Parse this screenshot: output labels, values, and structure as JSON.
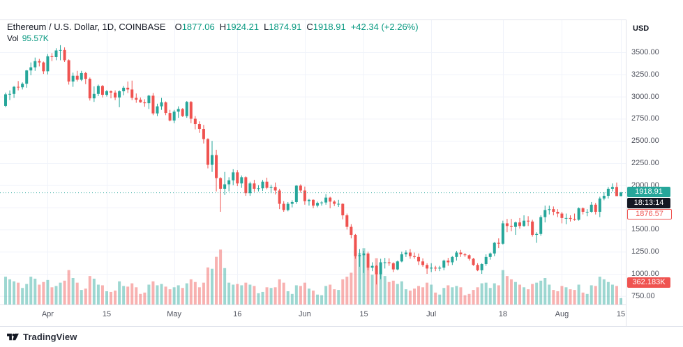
{
  "header": {
    "symbol_title": "Ethereum / U.S. Dollar, 1D, COINBASE",
    "ohlc": {
      "o_label": "O",
      "o": "1877.06",
      "h_label": "H",
      "h": "1924.21",
      "l_label": "L",
      "l": "1874.91",
      "c_label": "C",
      "c": "1918.91",
      "change": "+42.34 (+2.26%)"
    },
    "volume_label": "Vol",
    "volume_value": "95.57K"
  },
  "price_axis": {
    "unit": "USD",
    "last_price_badge": "1918.91",
    "countdown_badge": "18:13:14",
    "prev_close_badge": "1876.57",
    "volume_badge": "362.183K"
  },
  "footer": {
    "brand": "TradingView"
  },
  "chart_data": {
    "type": "candlestick+volume",
    "title": "Ethereum / U.S. Dollar, 1D, COINBASE",
    "symbol": "ETH/USD",
    "exchange": "COINBASE",
    "interval": "1D",
    "start_date": "2022-03-22",
    "last_price": 1918.91,
    "prev_close": 1876.57,
    "columns": [
      "open",
      "high",
      "low",
      "close",
      "volume_k"
    ],
    "candles": [
      [
        2895,
        3045,
        2880,
        3025,
        420
      ],
      [
        3025,
        3070,
        2960,
        3030,
        380
      ],
      [
        3030,
        3120,
        2985,
        3110,
        350
      ],
      [
        3110,
        3175,
        3070,
        3105,
        330
      ],
      [
        3105,
        3160,
        3080,
        3145,
        250
      ],
      [
        3145,
        3300,
        3100,
        3295,
        310
      ],
      [
        3295,
        3385,
        3240,
        3330,
        420
      ],
      [
        3330,
        3440,
        3290,
        3400,
        390
      ],
      [
        3400,
        3425,
        3340,
        3385,
        300
      ],
      [
        3385,
        3395,
        3255,
        3285,
        340
      ],
      [
        3285,
        3480,
        3250,
        3455,
        370
      ],
      [
        3455,
        3490,
        3400,
        3445,
        260
      ],
      [
        3445,
        3545,
        3410,
        3520,
        280
      ],
      [
        3520,
        3580,
        3410,
        3525,
        330
      ],
      [
        3525,
        3555,
        3390,
        3410,
        360
      ],
      [
        3410,
        3420,
        3135,
        3170,
        520
      ],
      [
        3170,
        3270,
        3110,
        3235,
        400
      ],
      [
        3235,
        3290,
        3170,
        3190,
        330
      ],
      [
        3190,
        3290,
        3175,
        3265,
        220
      ],
      [
        3265,
        3280,
        3140,
        3200,
        240
      ],
      [
        3200,
        3215,
        2955,
        2980,
        430
      ],
      [
        2980,
        3115,
        2940,
        3030,
        390
      ],
      [
        3030,
        3135,
        3005,
        3120,
        300
      ],
      [
        3120,
        3130,
        2990,
        3020,
        290
      ],
      [
        3020,
        3075,
        3000,
        3060,
        200
      ],
      [
        3060,
        3070,
        2980,
        3045,
        190
      ],
      [
        3045,
        3070,
        2960,
        2990,
        210
      ],
      [
        2990,
        3070,
        2880,
        3060,
        350
      ],
      [
        3060,
        3120,
        3015,
        3100,
        280
      ],
      [
        3100,
        3170,
        3040,
        3080,
        270
      ],
      [
        3080,
        3180,
        2960,
        2985,
        320
      ],
      [
        2985,
        3035,
        2930,
        2965,
        260
      ],
      [
        2965,
        2990,
        2930,
        2935,
        160
      ],
      [
        2935,
        2970,
        2885,
        2925,
        180
      ],
      [
        2925,
        3020,
        2860,
        3010,
        300
      ],
      [
        3010,
        3040,
        2790,
        2810,
        350
      ],
      [
        2810,
        2920,
        2780,
        2890,
        290
      ],
      [
        2890,
        2985,
        2850,
        2935,
        310
      ],
      [
        2935,
        2945,
        2790,
        2815,
        270
      ],
      [
        2815,
        2850,
        2720,
        2730,
        230
      ],
      [
        2730,
        2850,
        2700,
        2830,
        260
      ],
      [
        2830,
        2890,
        2760,
        2860,
        290
      ],
      [
        2860,
        2870,
        2770,
        2780,
        250
      ],
      [
        2780,
        2950,
        2760,
        2940,
        320
      ],
      [
        2940,
        2950,
        2700,
        2750,
        380
      ],
      [
        2750,
        2780,
        2630,
        2690,
        340
      ],
      [
        2690,
        2720,
        2590,
        2635,
        260
      ],
      [
        2635,
        2680,
        2470,
        2520,
        330
      ],
      [
        2520,
        2530,
        2190,
        2230,
        560
      ],
      [
        2230,
        2500,
        2150,
        2340,
        540
      ],
      [
        2340,
        2400,
        1930,
        2080,
        720
      ],
      [
        2080,
        2090,
        1700,
        1960,
        830
      ],
      [
        1960,
        2150,
        1890,
        2010,
        550
      ],
      [
        2010,
        2090,
        1930,
        2055,
        330
      ],
      [
        2055,
        2180,
        2000,
        2145,
        300
      ],
      [
        2145,
        2170,
        1990,
        2020,
        310
      ],
      [
        2020,
        2110,
        1970,
        2090,
        290
      ],
      [
        2090,
        2100,
        1880,
        1910,
        330
      ],
      [
        1910,
        2040,
        1880,
        2020,
        300
      ],
      [
        2020,
        2060,
        1925,
        1960,
        280
      ],
      [
        1960,
        2000,
        1930,
        1965,
        170
      ],
      [
        1965,
        2060,
        1935,
        2040,
        190
      ],
      [
        2040,
        2085,
        1955,
        1970,
        260
      ],
      [
        1970,
        2005,
        1910,
        1980,
        250
      ],
      [
        1980,
        2030,
        1895,
        1940,
        260
      ],
      [
        1940,
        1960,
        1730,
        1790,
        380
      ],
      [
        1790,
        1820,
        1700,
        1720,
        330
      ],
      [
        1720,
        1810,
        1705,
        1790,
        200
      ],
      [
        1790,
        1830,
        1750,
        1810,
        160
      ],
      [
        1810,
        2000,
        1790,
        1995,
        290
      ],
      [
        1995,
        2010,
        1915,
        1940,
        280
      ],
      [
        1940,
        1985,
        1780,
        1820,
        330
      ],
      [
        1820,
        1845,
        1770,
        1835,
        240
      ],
      [
        1835,
        1840,
        1740,
        1770,
        210
      ],
      [
        1770,
        1815,
        1750,
        1800,
        150
      ],
      [
        1800,
        1820,
        1770,
        1805,
        140
      ],
      [
        1805,
        1900,
        1780,
        1860,
        280
      ],
      [
        1860,
        1870,
        1740,
        1815,
        300
      ],
      [
        1815,
        1830,
        1765,
        1790,
        230
      ],
      [
        1790,
        1835,
        1755,
        1790,
        220
      ],
      [
        1790,
        1795,
        1615,
        1660,
        380
      ],
      [
        1660,
        1680,
        1500,
        1530,
        420
      ],
      [
        1530,
        1560,
        1400,
        1440,
        480
      ],
      [
        1440,
        1450,
        1170,
        1200,
        900
      ],
      [
        1200,
        1280,
        1080,
        1210,
        780
      ],
      [
        1210,
        1260,
        1010,
        1230,
        850
      ],
      [
        1230,
        1250,
        1040,
        1070,
        560
      ],
      [
        1070,
        1130,
        1030,
        1090,
        450
      ],
      [
        1090,
        1100,
        880,
        995,
        700
      ],
      [
        995,
        1170,
        940,
        1130,
        520
      ],
      [
        1130,
        1180,
        1060,
        1130,
        430
      ],
      [
        1130,
        1175,
        1090,
        1120,
        340
      ],
      [
        1120,
        1130,
        1020,
        1050,
        360
      ],
      [
        1050,
        1150,
        1040,
        1140,
        310
      ],
      [
        1140,
        1250,
        1130,
        1220,
        350
      ],
      [
        1220,
        1265,
        1190,
        1240,
        230
      ],
      [
        1240,
        1280,
        1170,
        1200,
        210
      ],
      [
        1200,
        1240,
        1170,
        1190,
        240
      ],
      [
        1190,
        1230,
        1100,
        1140,
        280
      ],
      [
        1140,
        1175,
        1080,
        1100,
        260
      ],
      [
        1100,
        1120,
        1000,
        1060,
        330
      ],
      [
        1060,
        1120,
        1020,
        1070,
        300
      ],
      [
        1070,
        1090,
        1030,
        1060,
        180
      ],
      [
        1060,
        1090,
        1030,
        1070,
        150
      ],
      [
        1070,
        1160,
        1040,
        1150,
        250
      ],
      [
        1150,
        1180,
        1090,
        1130,
        290
      ],
      [
        1130,
        1200,
        1100,
        1190,
        260
      ],
      [
        1190,
        1260,
        1150,
        1240,
        280
      ],
      [
        1240,
        1270,
        1190,
        1220,
        260
      ],
      [
        1220,
        1235,
        1190,
        1210,
        140
      ],
      [
        1210,
        1220,
        1150,
        1170,
        160
      ],
      [
        1170,
        1180,
        1090,
        1100,
        220
      ],
      [
        1100,
        1120,
        1030,
        1040,
        260
      ],
      [
        1040,
        1120,
        1000,
        1110,
        320
      ],
      [
        1110,
        1220,
        1090,
        1190,
        330
      ],
      [
        1190,
        1240,
        1160,
        1230,
        250
      ],
      [
        1230,
        1360,
        1200,
        1350,
        320
      ],
      [
        1350,
        1400,
        1290,
        1340,
        290
      ],
      [
        1340,
        1600,
        1330,
        1570,
        520
      ],
      [
        1570,
        1620,
        1470,
        1540,
        430
      ],
      [
        1540,
        1620,
        1480,
        1530,
        380
      ],
      [
        1530,
        1590,
        1440,
        1580,
        340
      ],
      [
        1580,
        1630,
        1510,
        1540,
        300
      ],
      [
        1540,
        1660,
        1530,
        1600,
        260
      ],
      [
        1600,
        1650,
        1540,
        1590,
        230
      ],
      [
        1590,
        1610,
        1420,
        1440,
        310
      ],
      [
        1440,
        1470,
        1350,
        1450,
        330
      ],
      [
        1450,
        1660,
        1430,
        1640,
        360
      ],
      [
        1640,
        1770,
        1580,
        1720,
        400
      ],
      [
        1720,
        1770,
        1670,
        1730,
        300
      ],
      [
        1730,
        1760,
        1660,
        1700,
        220
      ],
      [
        1700,
        1730,
        1640,
        1680,
        200
      ],
      [
        1680,
        1700,
        1570,
        1630,
        280
      ],
      [
        1630,
        1680,
        1560,
        1630,
        260
      ],
      [
        1630,
        1660,
        1590,
        1620,
        230
      ],
      [
        1620,
        1680,
        1600,
        1610,
        220
      ],
      [
        1610,
        1750,
        1600,
        1740,
        300
      ],
      [
        1740,
        1750,
        1670,
        1700,
        180
      ],
      [
        1700,
        1730,
        1650,
        1700,
        160
      ],
      [
        1700,
        1810,
        1690,
        1780,
        290
      ],
      [
        1780,
        1800,
        1670,
        1700,
        280
      ],
      [
        1700,
        1870,
        1640,
        1850,
        420
      ],
      [
        1850,
        1920,
        1830,
        1880,
        380
      ],
      [
        1880,
        1980,
        1850,
        1960,
        340
      ],
      [
        1960,
        2020,
        1930,
        1980,
        300
      ],
      [
        1980,
        2030,
        1877,
        1877,
        280
      ],
      [
        1877.06,
        1924.21,
        1874.91,
        1918.91,
        95.57
      ]
    ],
    "price_ticks": [
      {
        "label": "3500.00",
        "price": 3500
      },
      {
        "label": "3250.00",
        "price": 3250
      },
      {
        "label": "3000.00",
        "price": 3000
      },
      {
        "label": "2750.00",
        "price": 2750
      },
      {
        "label": "2500.00",
        "price": 2500
      },
      {
        "label": "2250.00",
        "price": 2250
      },
      {
        "label": "2000.00",
        "price": 2000
      },
      {
        "label": "1500.00",
        "price": 1500
      },
      {
        "label": "1250.00",
        "price": 1250
      },
      {
        "label": "1000.00",
        "price": 1000
      },
      {
        "label": "750.00",
        "price": 750
      }
    ],
    "grid_extra_prices": [
      1750
    ],
    "time_ticks": [
      {
        "label": "Apr",
        "i": 10
      },
      {
        "label": "15",
        "i": 24
      },
      {
        "label": "May",
        "i": 40
      },
      {
        "label": "16",
        "i": 55
      },
      {
        "label": "Jun",
        "i": 71
      },
      {
        "label": "15",
        "i": 85
      },
      {
        "label": "Jul",
        "i": 101
      },
      {
        "label": "18",
        "i": 118
      },
      {
        "label": "Aug",
        "i": 132
      },
      {
        "label": "15",
        "i": 146
      }
    ],
    "ylim": [
      615,
      3870
    ],
    "grid": true,
    "colors": {
      "up": "#26a69a",
      "down": "#ef5350",
      "up_volume": "rgba(38,166,154,0.45)",
      "down_volume": "rgba(239,83,80,0.45)",
      "grid": "#f0f3fa",
      "axis_border": "#e0e3eb",
      "axis_text": "#50535e",
      "value_text": "#089981",
      "last_price_line": "#26a69a"
    }
  }
}
